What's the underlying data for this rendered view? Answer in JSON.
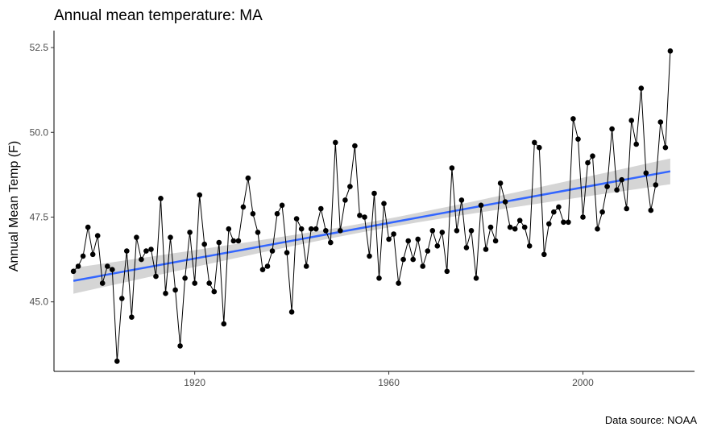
{
  "chart_data": {
    "type": "line",
    "title": "Annual mean temperature: MA",
    "xlabel": "",
    "ylabel": "Annual Mean Temp (F)",
    "caption": "Data source: NOAA",
    "xlim": [
      1891,
      2023
    ],
    "ylim": [
      42.95,
      53.0
    ],
    "x_ticks": [
      1920,
      1960,
      2000
    ],
    "x_tick_labels": [
      "1920",
      "1960",
      "2000"
    ],
    "y_ticks": [
      45.0,
      47.5,
      50.0,
      52.5
    ],
    "y_tick_labels": [
      "45.0",
      "47.5",
      "50.0",
      "52.5"
    ],
    "grid": false,
    "colors": {
      "points": "#000000",
      "line": "#000000",
      "trend": "#3366ff",
      "band": "#d3d3d3"
    },
    "series": [
      {
        "x": [
          1895,
          1896,
          1897,
          1898,
          1899,
          1900,
          1901,
          1902,
          1903,
          1904,
          1905,
          1906,
          1907,
          1908,
          1909,
          1910,
          1911,
          1912,
          1913,
          1914,
          1915,
          1916,
          1917,
          1918,
          1919,
          1920,
          1921,
          1922,
          1923,
          1924,
          1925,
          1926,
          1927,
          1928,
          1929,
          1930,
          1931,
          1932,
          1933,
          1934,
          1935,
          1936,
          1937,
          1938,
          1939,
          1940,
          1941,
          1942,
          1943,
          1944,
          1945,
          1946,
          1947,
          1948,
          1949,
          1950,
          1951,
          1952,
          1953,
          1954,
          1955,
          1956,
          1957,
          1958,
          1959,
          1960,
          1961,
          1962,
          1963,
          1964,
          1965,
          1966,
          1967,
          1968,
          1969,
          1970,
          1971,
          1972,
          1973,
          1974,
          1975,
          1976,
          1977,
          1978,
          1979,
          1980,
          1981,
          1982,
          1983,
          1984,
          1985,
          1986,
          1987,
          1988,
          1989,
          1990,
          1991,
          1992,
          1993,
          1994,
          1995,
          1996,
          1997,
          1998,
          1999,
          2000,
          2001,
          2002,
          2003,
          2004,
          2005,
          2006,
          2007,
          2008,
          2009,
          2010,
          2011,
          2012,
          2013,
          2014,
          2015,
          2016,
          2017,
          2018
        ],
        "values": [
          45.9,
          46.05,
          46.35,
          47.2,
          46.4,
          46.95,
          45.55,
          46.05,
          45.95,
          43.25,
          45.1,
          46.5,
          44.55,
          46.9,
          46.25,
          46.5,
          46.55,
          45.75,
          48.05,
          45.25,
          46.9,
          45.35,
          43.7,
          45.7,
          47.05,
          45.55,
          48.15,
          46.7,
          45.55,
          45.3,
          46.75,
          44.35,
          47.15,
          46.8,
          46.8,
          47.8,
          48.65,
          47.6,
          47.05,
          45.95,
          46.05,
          46.5,
          47.6,
          47.85,
          46.45,
          44.7,
          47.45,
          47.15,
          46.05,
          47.15,
          47.15,
          47.75,
          47.1,
          46.75,
          49.7,
          47.1,
          48.0,
          48.4,
          49.6,
          47.55,
          47.5,
          46.35,
          48.2,
          45.7,
          47.9,
          46.85,
          47.0,
          45.55,
          46.25,
          46.8,
          46.25,
          46.85,
          46.05,
          46.5,
          47.1,
          46.65,
          47.05,
          45.9,
          48.95,
          47.1,
          48.0,
          46.6,
          47.1,
          45.7,
          47.85,
          46.55,
          47.2,
          46.8,
          48.5,
          47.95,
          47.2,
          47.15,
          47.4,
          47.2,
          46.65,
          49.7,
          49.55,
          46.4,
          47.3,
          47.65,
          47.8,
          47.35,
          47.35,
          50.4,
          49.8,
          47.5,
          49.1,
          49.3,
          47.15,
          47.65,
          48.4,
          50.1,
          48.3,
          48.6,
          47.75,
          50.35,
          49.65,
          51.3,
          48.8,
          47.7,
          48.45,
          50.3,
          49.55,
          52.4
        ]
      }
    ],
    "trend": {
      "method": "lm",
      "start": [
        1895,
        45.62
      ],
      "end": [
        2018,
        48.85
      ],
      "se_halfwidth_ends": 0.38,
      "se_halfwidth_mid": 0.13
    }
  }
}
